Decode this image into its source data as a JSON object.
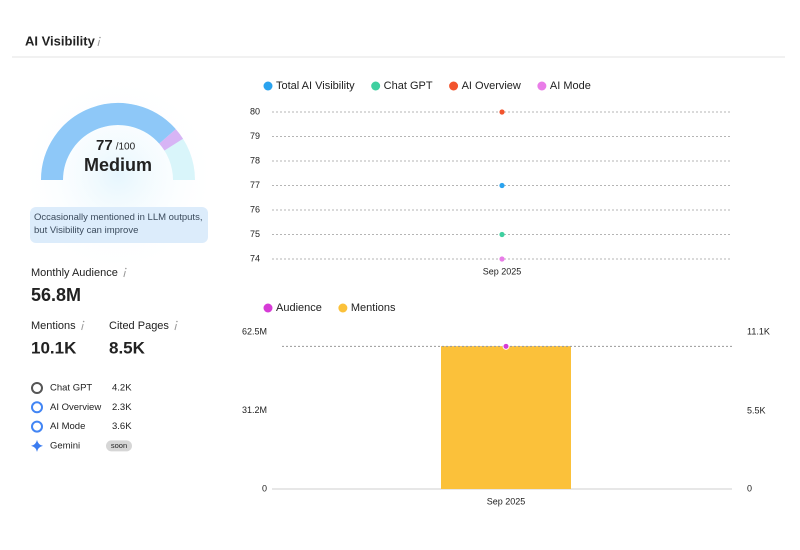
{
  "header": {
    "title": "AI Visibility"
  },
  "gauge": {
    "value": 77,
    "max": {
      "value": 100,
      "label": "/100"
    },
    "level": "Medium",
    "note": "Occasionally mentioned in LLM outputs, but Visibility can improve",
    "color": "#8ec8f8"
  },
  "audience": {
    "label": "Monthly Audience",
    "value": "56.8M"
  },
  "metrics": [
    {
      "label": "Mentions",
      "value": "10.1K"
    },
    {
      "label": "Cited Pages",
      "value": "8.5K"
    }
  ],
  "sources": [
    {
      "name": "Chat GPT",
      "value": "4.2K"
    },
    {
      "name": "AI Overview",
      "value": "2.3K"
    },
    {
      "name": "AI Mode",
      "value": "3.6K"
    },
    {
      "name": "Gemini",
      "value": "soon"
    }
  ],
  "chart_data": [
    {
      "type": "line",
      "categories": [
        "Sep 2025"
      ],
      "series": [
        {
          "name": "Total AI Visibility",
          "color": "#2aa3ef",
          "values": [
            77
          ]
        },
        {
          "name": "Chat GPT",
          "color": "#3fd0a0",
          "values": [
            75
          ]
        },
        {
          "name": "AI Overview",
          "color": "#f2542d",
          "values": [
            80
          ]
        },
        {
          "name": "AI Mode",
          "color": "#e97de8",
          "values": [
            74
          ]
        }
      ],
      "ylim": [
        74,
        80
      ],
      "yticks": [
        74,
        75,
        76,
        77,
        78,
        79,
        80
      ],
      "grid": true,
      "legend": "top"
    },
    {
      "type": "bar",
      "categories": [
        "Sep 2025"
      ],
      "series": [
        {
          "name": "Audience",
          "color": "#d63bd6",
          "type": "line",
          "values": [
            56800000
          ]
        },
        {
          "name": "Mentions",
          "color": "#fbc13a",
          "type": "bar",
          "axis": "y2",
          "values": [
            10100
          ]
        }
      ],
      "ylim": [
        0,
        62500000
      ],
      "yticks": [
        0,
        {
          "value": 31200000,
          "label": "31.2M"
        },
        {
          "value": 62500000,
          "label": "62.5M"
        }
      ],
      "y2lim": [
        0,
        11100
      ],
      "y2ticks": [
        0,
        {
          "value": 5500,
          "label": "5.5K"
        },
        {
          "value": 11100,
          "label": "11.1K"
        }
      ],
      "grid": false,
      "legend": "top"
    }
  ]
}
